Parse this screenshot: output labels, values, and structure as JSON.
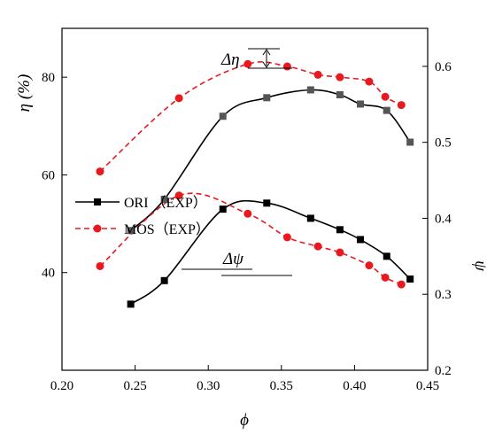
{
  "chart_data": {
    "type": "line",
    "xlabel": "ϕ",
    "x_ticks": [
      "0.20",
      "0.25",
      "0.30",
      "0.35",
      "0.40",
      "0.45"
    ],
    "xlim": [
      0.2,
      0.45
    ],
    "left_axis": {
      "label": "η (%)",
      "ylim": [
        20,
        90
      ],
      "ticks": [
        "40",
        "60",
        "80"
      ]
    },
    "right_axis": {
      "label": "ψ",
      "ylim": [
        0.2,
        0.65
      ],
      "ticks": [
        "0.2",
        "0.3",
        "0.4",
        "0.5",
        "0.6"
      ]
    },
    "legend": {
      "placement": "center-left",
      "entries": [
        "ORI  （EXP）",
        "MOS（EXP）"
      ]
    },
    "series": [
      {
        "name": "ORI  （EXP）",
        "axis": "left",
        "color": "#000000",
        "marker_color": "#555555",
        "line_style": "solid",
        "marker": "square",
        "points": [
          [
            0.247,
            48.6
          ],
          [
            0.27,
            55
          ],
          [
            0.31,
            72
          ],
          [
            0.34,
            75.8
          ],
          [
            0.37,
            77.4
          ],
          [
            0.39,
            76.4
          ],
          [
            0.404,
            74.5
          ],
          [
            0.422,
            73.2
          ],
          [
            0.438,
            66.7
          ]
        ]
      },
      {
        "name": "MOS（EXP）",
        "axis": "left",
        "color": "#e8191f",
        "marker_color": "#e8191f",
        "line_style": "dashed",
        "marker": "circle",
        "points": [
          [
            0.226,
            60.7
          ],
          [
            0.28,
            75.7
          ],
          [
            0.327,
            82.7
          ],
          [
            0.354,
            82.2
          ],
          [
            0.375,
            80.5
          ],
          [
            0.39,
            80
          ],
          [
            0.41,
            79.1
          ],
          [
            0.421,
            76
          ],
          [
            0.432,
            74.3
          ]
        ]
      },
      {
        "name": "ORI  （EXP）",
        "axis": "right",
        "color": "#000000",
        "marker_color": "#000000",
        "line_style": "solid",
        "marker": "square",
        "points": [
          [
            0.247,
            0.287
          ],
          [
            0.27,
            0.318
          ],
          [
            0.31,
            0.412
          ],
          [
            0.34,
            0.42
          ],
          [
            0.37,
            0.4
          ],
          [
            0.39,
            0.385
          ],
          [
            0.404,
            0.372
          ],
          [
            0.422,
            0.35
          ],
          [
            0.438,
            0.32
          ]
        ]
      },
      {
        "name": "MOS（EXP）",
        "axis": "right",
        "color": "#e8191f",
        "marker_color": "#e8191f",
        "line_style": "dashed",
        "marker": "circle",
        "points": [
          [
            0.226,
            0.337
          ],
          [
            0.28,
            0.43
          ],
          [
            0.327,
            0.406
          ],
          [
            0.354,
            0.375
          ],
          [
            0.375,
            0.363
          ],
          [
            0.39,
            0.355
          ],
          [
            0.41,
            0.338
          ],
          [
            0.421,
            0.322
          ],
          [
            0.432,
            0.313
          ]
        ]
      }
    ],
    "annotations": [
      {
        "text": "Δη",
        "axis": "left"
      },
      {
        "text": "Δψ",
        "axis": "right"
      }
    ]
  }
}
